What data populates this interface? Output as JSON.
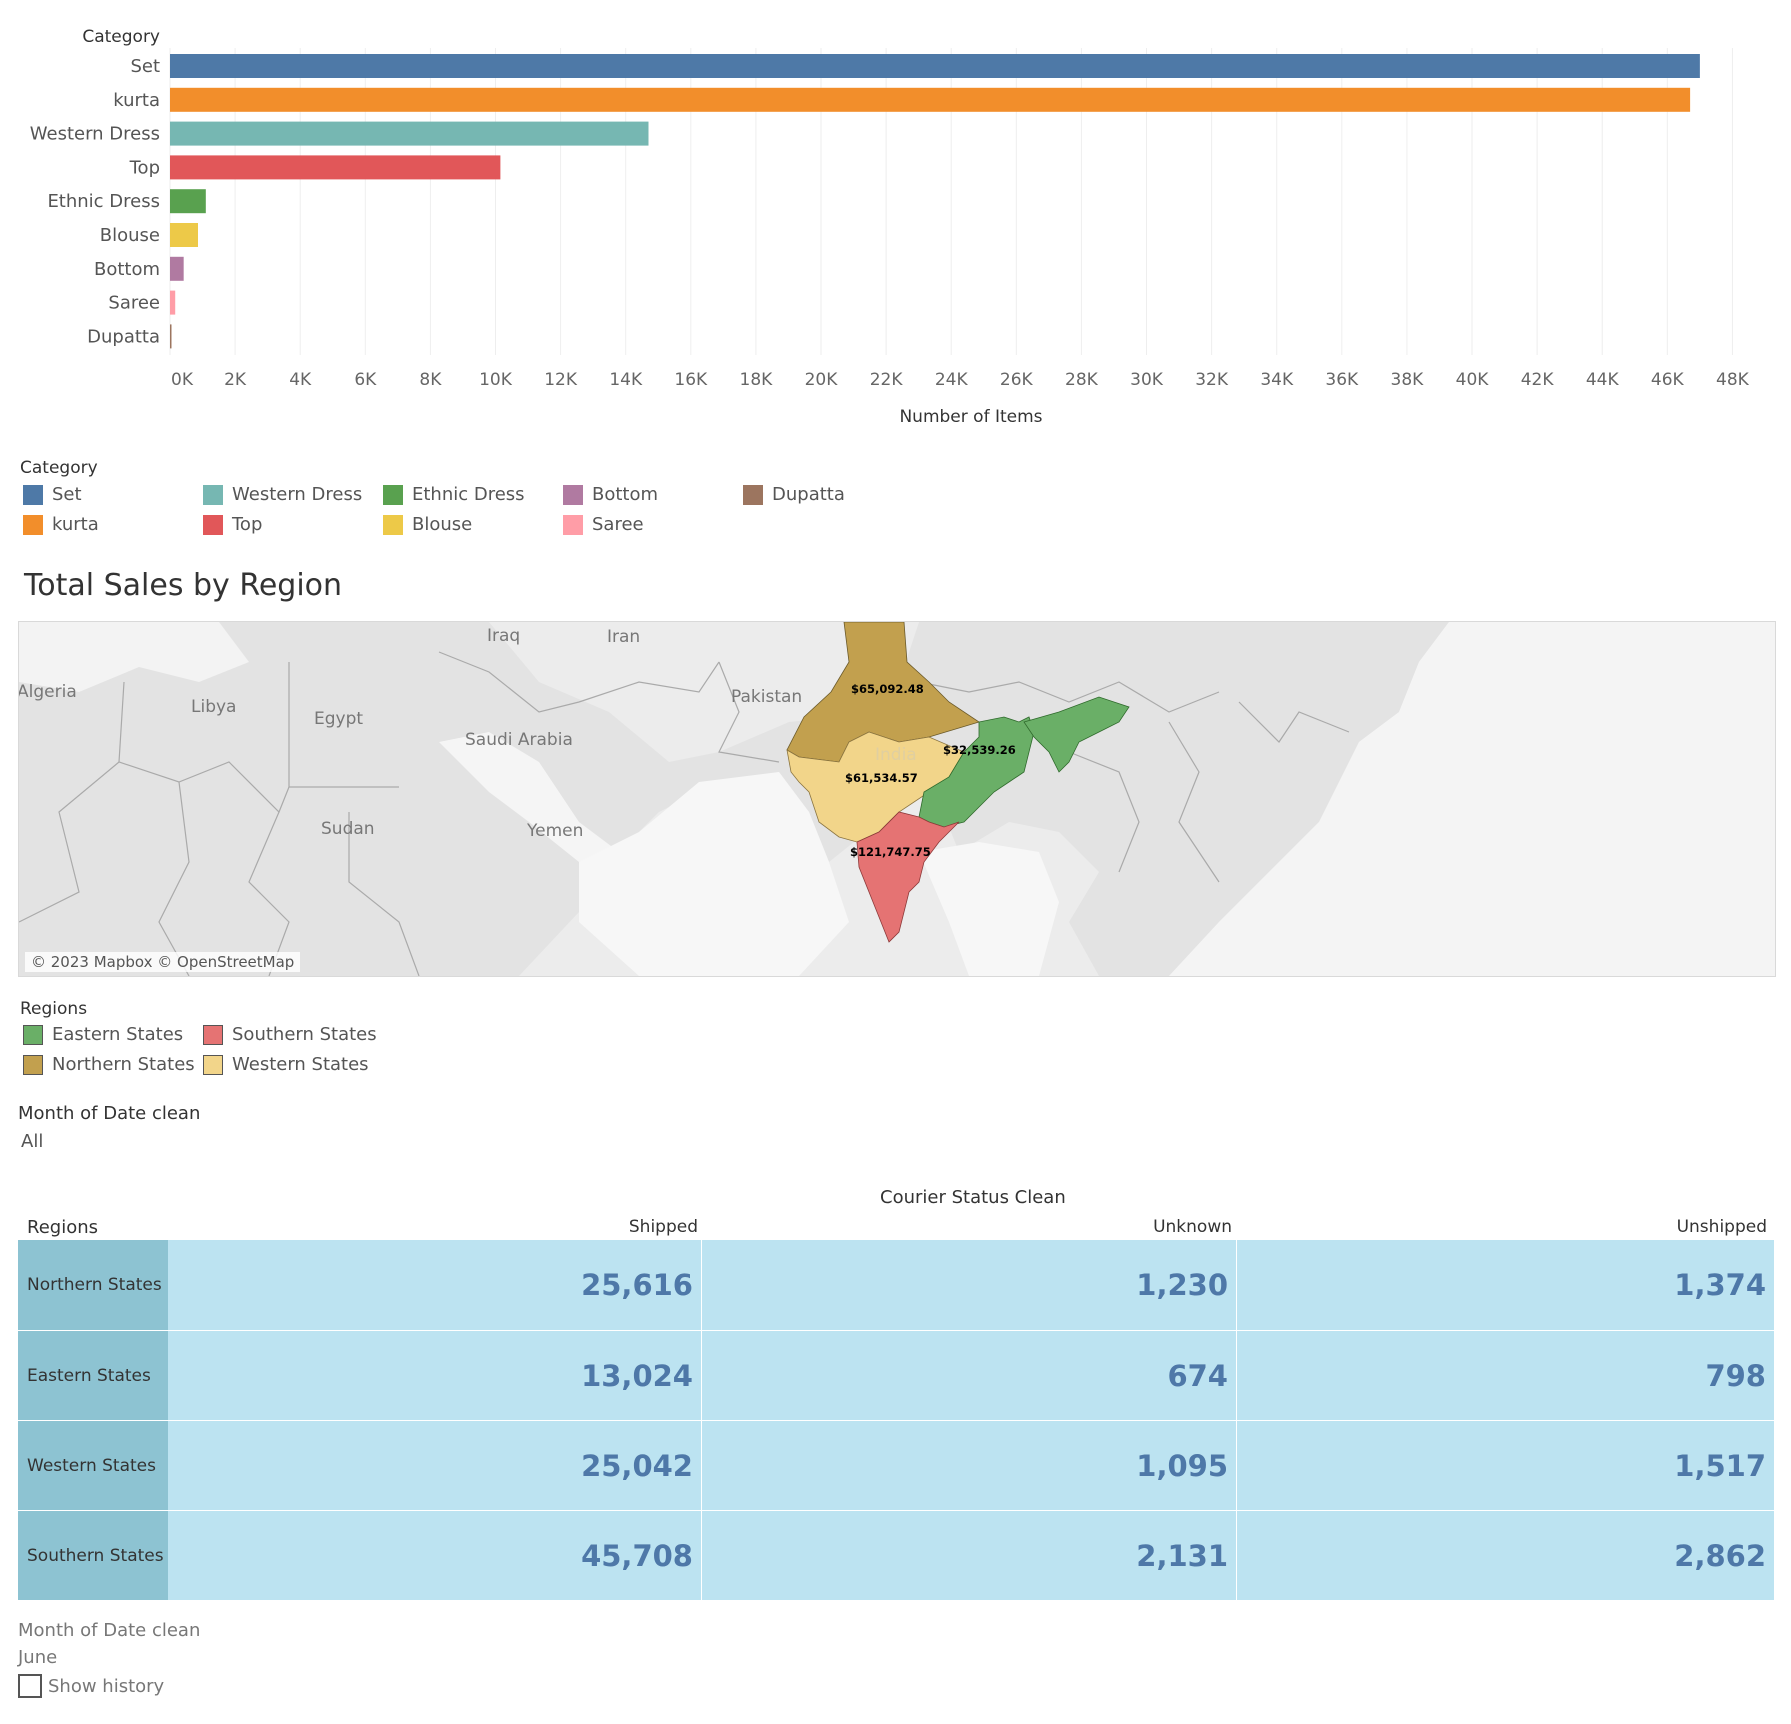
{
  "bar_panel": {
    "header": "Category",
    "x_axis_title": "Number of Items"
  },
  "chart_data": {
    "type": "bar",
    "orientation": "horizontal",
    "title": "",
    "categories": [
      "Set",
      "kurta",
      "Western Dress",
      "Top",
      "Ethnic Dress",
      "Blouse",
      "Bottom",
      "Saree",
      "Dupatta"
    ],
    "values": [
      47000,
      46700,
      14700,
      10150,
      1100,
      860,
      420,
      160,
      30
    ],
    "colors": [
      "#4e79a7",
      "#f28e2b",
      "#76b7b2",
      "#e15759",
      "#59a14f",
      "#edc948",
      "#b07aa1",
      "#ff9da7",
      "#9c755f"
    ],
    "xlim": [
      0,
      49400
    ],
    "x_ticks": [
      0,
      2000,
      4000,
      6000,
      8000,
      10000,
      12000,
      14000,
      16000,
      18000,
      20000,
      22000,
      24000,
      26000,
      28000,
      30000,
      32000,
      34000,
      36000,
      38000,
      40000,
      42000,
      44000,
      46000,
      48000
    ],
    "x_tick_labels": [
      "0K",
      "2K",
      "4K",
      "6K",
      "8K",
      "10K",
      "12K",
      "14K",
      "16K",
      "18K",
      "20K",
      "22K",
      "24K",
      "26K",
      "28K",
      "30K",
      "32K",
      "34K",
      "36K",
      "38K",
      "40K",
      "42K",
      "44K",
      "46K",
      "48K"
    ],
    "xlabel": "Number of Items",
    "ylabel": "Category",
    "grid": true
  },
  "category_legend": {
    "title": "Category",
    "items": [
      {
        "label": "Set",
        "color": "#4e79a7"
      },
      {
        "label": "kurta",
        "color": "#f28e2b"
      },
      {
        "label": "Western Dress",
        "color": "#76b7b2"
      },
      {
        "label": "Top",
        "color": "#e15759"
      },
      {
        "label": "Ethnic Dress",
        "color": "#59a14f"
      },
      {
        "label": "Blouse",
        "color": "#edc948"
      },
      {
        "label": "Bottom",
        "color": "#b07aa1"
      },
      {
        "label": "Saree",
        "color": "#ff9da7"
      },
      {
        "label": "Dupatta",
        "color": "#9c755f"
      }
    ]
  },
  "map": {
    "title": "Total Sales by Region",
    "attribution": "© 2023 Mapbox © OpenStreetMap",
    "place_labels": [
      "Algeria",
      "Libya",
      "Egypt",
      "Iraq",
      "Iran",
      "Pakistan",
      "Saudi Arabia",
      "Sudan",
      "Yemen",
      "India"
    ],
    "regions": [
      {
        "name": "Northern States",
        "sales": "$65,092.48",
        "color": "#c2a04e"
      },
      {
        "name": "Eastern States",
        "sales": "$32,539.26",
        "color": "#6aaf67"
      },
      {
        "name": "Western States",
        "sales": "$61,534.57",
        "color": "#f2d58a"
      },
      {
        "name": "Southern States",
        "sales": "$121,747.75",
        "color": "#e57373"
      }
    ]
  },
  "regions_legend": {
    "title": "Regions",
    "items": [
      {
        "label": "Eastern States",
        "color": "#6aaf67"
      },
      {
        "label": "Northern States",
        "color": "#c2a04e"
      },
      {
        "label": "Southern States",
        "color": "#e57373"
      },
      {
        "label": "Western States",
        "color": "#f2d58a"
      }
    ]
  },
  "filter_top": {
    "title": "Month of Date clean",
    "value": "All"
  },
  "crosstab": {
    "column_group_header": "Courier Status Clean",
    "row_header": "Regions",
    "columns": [
      "Shipped",
      "Unknown",
      "Unshipped"
    ],
    "rows": [
      {
        "region": "Northern States",
        "values": [
          "25,616",
          "1,230",
          "1,374"
        ]
      },
      {
        "region": "Eastern States",
        "values": [
          "13,024",
          "674",
          "798"
        ]
      },
      {
        "region": "Western States",
        "values": [
          "25,042",
          "1,095",
          "1,517"
        ]
      },
      {
        "region": "Southern States",
        "values": [
          "45,708",
          "2,131",
          "2,862"
        ]
      }
    ]
  },
  "filter_bottom": {
    "title": "Month of Date clean",
    "value": "June",
    "show_history_label": "Show history"
  }
}
